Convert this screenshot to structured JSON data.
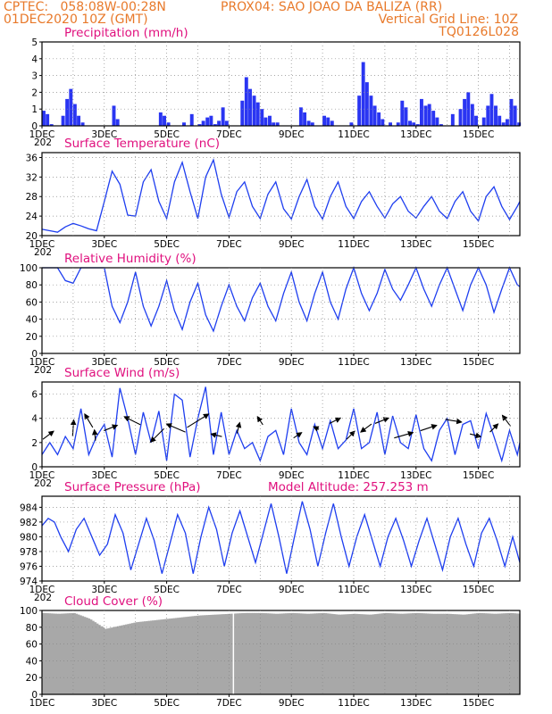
{
  "header": {
    "left_line1": "CPTEC:   058:08W-00:28N",
    "center_line1": "PROX04: SAO JOAO DA BALIZA (RR)",
    "left_line2": "01DEC2020 10Z (GMT)",
    "right_line2": "Vertical Grid Line: 10Z",
    "right_line3": "TQ0126L028"
  },
  "colors": {
    "header": "#e8792a",
    "title": "#e0107e",
    "series": "#1e3ef0",
    "bar": "#2a35f2",
    "cloud": "#a8a8a8",
    "arrow": "#000000",
    "grid": "#888888"
  },
  "x_axis": {
    "labels": [
      "1DEC",
      "3DEC",
      "5DEC",
      "7DEC",
      "9DEC",
      "11DEC",
      "13DEC",
      "15DEC"
    ],
    "sub_label": "202",
    "range_days": [
      0,
      15.33
    ]
  },
  "chart_data": [
    {
      "id": "precip",
      "type": "bar",
      "title": "Precipitation (mm/h)",
      "ylim": [
        0,
        5
      ],
      "yticks": [
        "0",
        "1",
        "2",
        "3",
        "4",
        "5"
      ],
      "x_days": [
        0.0,
        0.12,
        0.25,
        0.37,
        0.5,
        0.62,
        0.75,
        0.87,
        1.0,
        1.12,
        1.25,
        1.37,
        1.5,
        1.62,
        1.75,
        1.87,
        2.0,
        2.12,
        2.25,
        2.37,
        2.5,
        2.62,
        2.75,
        2.87,
        3.0,
        3.12,
        3.25,
        3.37,
        3.5,
        3.62,
        3.75,
        3.87,
        4.0,
        4.12,
        4.25,
        4.37,
        4.5,
        4.62,
        4.75,
        4.87,
        5.0,
        5.12,
        5.25,
        5.37,
        5.5,
        5.62,
        5.75,
        5.87,
        6.0,
        6.12,
        6.25,
        6.37,
        6.5,
        6.62,
        6.75,
        6.87,
        7.0,
        7.12,
        7.25,
        7.37,
        7.5,
        7.62,
        7.75,
        7.87,
        8.0,
        8.12,
        8.25,
        8.37,
        8.5,
        8.62,
        8.75,
        8.87,
        9.0,
        9.12,
        9.25,
        9.37,
        9.5,
        9.62,
        9.75,
        9.87,
        10.0,
        10.12,
        10.25,
        10.37,
        10.5,
        10.62,
        10.75,
        10.87,
        11.0,
        11.12,
        11.25,
        11.37,
        11.5,
        11.62,
        11.75,
        11.87,
        12.0,
        12.12,
        12.25,
        12.37,
        12.5,
        12.62,
        12.75,
        12.87,
        13.0,
        13.12,
        13.25,
        13.37,
        13.5,
        13.62,
        13.75,
        13.87,
        14.0,
        14.12,
        14.25,
        14.37,
        14.5,
        14.62,
        14.75,
        14.87,
        15.0,
        15.12,
        15.25
      ],
      "values": [
        0.9,
        0.7,
        0.1,
        0,
        0,
        0.6,
        1.6,
        2.2,
        1.3,
        0.6,
        0.2,
        0,
        0,
        0,
        0,
        0,
        0,
        0,
        1.2,
        0.4,
        0,
        0,
        0,
        0,
        0,
        0,
        0,
        0,
        0,
        0,
        0.8,
        0.6,
        0.2,
        0,
        0,
        0,
        0.2,
        0,
        0.7,
        0,
        0.1,
        0.3,
        0.5,
        0.6,
        0.1,
        0.3,
        1.1,
        0.3,
        0,
        0,
        0,
        1.5,
        2.9,
        2.2,
        1.8,
        1.4,
        1.0,
        0.5,
        0.6,
        0.2,
        0.2,
        0,
        0,
        0,
        0,
        0,
        1.1,
        0.8,
        0.3,
        0.2,
        0,
        0,
        0.6,
        0.5,
        0.3,
        0,
        0,
        0,
        0,
        0.2,
        0,
        1.8,
        3.8,
        2.6,
        1.8,
        1.2,
        0.8,
        0.4,
        0,
        0.2,
        0,
        0.2,
        1.5,
        1.1,
        0.3,
        0.2,
        0.1,
        1.6,
        1.2,
        1.3,
        0.9,
        0.5,
        0.1,
        0,
        0,
        0.7,
        0,
        1.0,
        1.6,
        2.0,
        1.3,
        0.6,
        0,
        0.5,
        1.2,
        1.9,
        1.2,
        0.6,
        0.2,
        0.4,
        1.6,
        1.2,
        0.2
      ]
    },
    {
      "id": "temp",
      "type": "line",
      "title": "Surface Temperature (nC)",
      "ylim": [
        20,
        37
      ],
      "yticks": [
        "20",
        "24",
        "28",
        "32",
        "36"
      ],
      "x_days": [
        0,
        0.25,
        0.5,
        0.75,
        1.0,
        1.25,
        1.5,
        1.75,
        2.0,
        2.25,
        2.5,
        2.75,
        3.0,
        3.25,
        3.5,
        3.75,
        4.0,
        4.25,
        4.5,
        4.75,
        5.0,
        5.25,
        5.5,
        5.75,
        6.0,
        6.25,
        6.5,
        6.75,
        7.0,
        7.25,
        7.5,
        7.75,
        8.0,
        8.25,
        8.5,
        8.75,
        9.0,
        9.25,
        9.5,
        9.75,
        10.0,
        10.25,
        10.5,
        10.75,
        11.0,
        11.25,
        11.5,
        11.75,
        12.0,
        12.25,
        12.5,
        12.75,
        13.0,
        13.25,
        13.5,
        13.75,
        14.0,
        14.25,
        14.5,
        14.75,
        15.0,
        15.25,
        15.33
      ],
      "values": [
        21.3,
        21.0,
        20.7,
        21.8,
        22.5,
        22.0,
        21.4,
        21.0,
        27.0,
        33.2,
        30.5,
        24.2,
        24.0,
        31.0,
        33.5,
        27.0,
        23.5,
        31.0,
        35.0,
        29.0,
        23.5,
        32.0,
        35.5,
        28.5,
        23.7,
        29.0,
        31.0,
        26.0,
        23.5,
        28.5,
        31.0,
        25.5,
        23.4,
        28.0,
        31.5,
        26.0,
        23.4,
        28.0,
        31.0,
        26.0,
        23.5,
        27.0,
        29.0,
        26.0,
        23.6,
        26.5,
        28.0,
        25.0,
        23.6,
        26.0,
        28.0,
        25.0,
        23.5,
        27.0,
        29.0,
        25.0,
        23.0,
        28.0,
        30.0,
        26.0,
        23.3,
        26.0,
        27.0
      ]
    },
    {
      "id": "rh",
      "type": "line",
      "title": "Relative Humidity (%)",
      "ylim": [
        0,
        100
      ],
      "yticks": [
        "0",
        "20",
        "40",
        "60",
        "80",
        "100"
      ],
      "x_days": [
        0,
        0.25,
        0.5,
        0.75,
        1.0,
        1.25,
        1.5,
        1.75,
        2.0,
        2.25,
        2.5,
        2.75,
        3.0,
        3.25,
        3.5,
        3.75,
        4.0,
        4.25,
        4.5,
        4.75,
        5.0,
        5.25,
        5.5,
        5.75,
        6.0,
        6.25,
        6.5,
        6.75,
        7.0,
        7.25,
        7.5,
        7.75,
        8.0,
        8.25,
        8.5,
        8.75,
        9.0,
        9.25,
        9.5,
        9.75,
        10.0,
        10.25,
        10.5,
        10.75,
        11.0,
        11.25,
        11.5,
        11.75,
        12.0,
        12.25,
        12.5,
        12.75,
        13.0,
        13.25,
        13.5,
        13.75,
        14.0,
        14.25,
        14.5,
        14.75,
        15.0,
        15.25,
        15.33
      ],
      "values": [
        100,
        100,
        100,
        85,
        82,
        100,
        100,
        100,
        100,
        55,
        36,
        60,
        95,
        55,
        32,
        55,
        85,
        50,
        28,
        60,
        82,
        45,
        26,
        55,
        80,
        55,
        38,
        65,
        82,
        55,
        38,
        70,
        95,
        60,
        38,
        70,
        95,
        60,
        40,
        75,
        100,
        70,
        50,
        70,
        98,
        75,
        62,
        80,
        100,
        75,
        55,
        80,
        100,
        75,
        50,
        80,
        100,
        80,
        48,
        75,
        100,
        80,
        78
      ]
    },
    {
      "id": "wind",
      "type": "line",
      "title": "Surface Wind (m/s)",
      "ylim": [
        0,
        7
      ],
      "yticks": [
        "0",
        "2",
        "4",
        "6"
      ],
      "x_days": [
        0,
        0.25,
        0.5,
        0.75,
        1.0,
        1.25,
        1.5,
        1.75,
        2.0,
        2.25,
        2.5,
        2.75,
        3.0,
        3.25,
        3.5,
        3.75,
        4.0,
        4.25,
        4.5,
        4.75,
        5.0,
        5.25,
        5.5,
        5.75,
        6.0,
        6.25,
        6.5,
        6.75,
        7.0,
        7.25,
        7.5,
        7.75,
        8.0,
        8.25,
        8.5,
        8.75,
        9.0,
        9.25,
        9.5,
        9.75,
        10.0,
        10.25,
        10.5,
        10.75,
        11.0,
        11.25,
        11.5,
        11.75,
        12.0,
        12.25,
        12.5,
        12.75,
        13.0,
        13.25,
        13.5,
        13.75,
        14.0,
        14.25,
        14.5,
        14.75,
        15.0,
        15.25,
        15.33
      ],
      "values": [
        1.0,
        2.0,
        1.0,
        2.5,
        1.5,
        4.8,
        1.0,
        2.5,
        3.5,
        0.8,
        6.5,
        4.0,
        1.0,
        4.5,
        2.0,
        4.6,
        0.5,
        6.0,
        5.5,
        0.8,
        4.0,
        6.6,
        1.0,
        4.5,
        1.0,
        3.0,
        1.5,
        2.0,
        0.5,
        2.5,
        3.0,
        1.0,
        4.8,
        2.0,
        1.0,
        3.5,
        1.5,
        3.8,
        1.5,
        2.2,
        4.8,
        1.5,
        2.0,
        4.5,
        1.0,
        4.2,
        2.0,
        1.5,
        4.3,
        1.5,
        0.5,
        3.0,
        4.0,
        1.0,
        3.5,
        3.8,
        1.5,
        4.4,
        2.5,
        0.5,
        3.0,
        1.0,
        2.0
      ],
      "arrows_x_days": [
        0.2,
        1.0,
        1.5,
        1.7,
        2.2,
        2.9,
        3.7,
        4.3,
        5.0,
        5.6,
        6.3,
        7.0,
        8.2,
        8.8,
        9.4,
        9.9,
        10.4,
        10.9,
        11.6,
        12.4,
        13.2,
        13.9,
        14.5,
        14.9
      ],
      "arrows_u": [
        2.0,
        0.2,
        -1.5,
        -0.2,
        2.5,
        -3.0,
        -2.5,
        -3.5,
        4.0,
        -2.0,
        0.5,
        -1.0,
        1.5,
        -1.0,
        2.0,
        1.5,
        -2.0,
        2.5,
        3.5,
        3.0,
        3.0,
        2.0,
        1.5,
        -1.5
      ],
      "arrows_v": [
        1.5,
        3.0,
        2.5,
        2.0,
        1.0,
        1.5,
        -2.5,
        1.5,
        2.5,
        0.5,
        2.0,
        1.5,
        1.0,
        0.5,
        1.0,
        1.5,
        -1.5,
        1.0,
        1.0,
        1.0,
        -0.5,
        -0.5,
        1.5,
        2.0
      ]
    },
    {
      "id": "pres",
      "type": "line",
      "title": "Surface Pressure (hPa)",
      "title_right": "Model Altitude: 257.253 m",
      "ylim": [
        974,
        985.5
      ],
      "yticks": [
        "974",
        "976",
        "978",
        "980",
        "982",
        "984"
      ],
      "x_days": [
        0,
        0.2,
        0.4,
        0.6,
        0.85,
        1.1,
        1.35,
        1.6,
        1.85,
        2.1,
        2.35,
        2.6,
        2.85,
        3.1,
        3.35,
        3.6,
        3.85,
        4.1,
        4.35,
        4.6,
        4.85,
        5.1,
        5.35,
        5.6,
        5.85,
        6.1,
        6.35,
        6.6,
        6.85,
        7.1,
        7.35,
        7.6,
        7.85,
        8.1,
        8.35,
        8.6,
        8.85,
        9.1,
        9.35,
        9.6,
        9.85,
        10.1,
        10.35,
        10.6,
        10.85,
        11.1,
        11.35,
        11.6,
        11.85,
        12.1,
        12.35,
        12.6,
        12.85,
        13.1,
        13.35,
        13.6,
        13.85,
        14.1,
        14.35,
        14.6,
        14.85,
        15.1,
        15.33
      ],
      "values": [
        981.5,
        982.5,
        982.0,
        980.0,
        978.0,
        981.0,
        982.5,
        980.0,
        977.5,
        979.0,
        983.0,
        980.5,
        975.5,
        979.0,
        982.5,
        979.5,
        975.0,
        979.0,
        983.0,
        980.5,
        975.0,
        980.0,
        984.0,
        981.0,
        976.0,
        980.5,
        983.5,
        980.0,
        976.5,
        980.5,
        984.5,
        980.0,
        975.0,
        980.0,
        984.8,
        981.0,
        976.0,
        980.5,
        984.5,
        980.0,
        976.0,
        980.0,
        983.0,
        979.5,
        976.0,
        980.0,
        982.5,
        979.5,
        976.0,
        979.5,
        982.5,
        979.0,
        975.5,
        980.0,
        982.5,
        979.0,
        976.0,
        980.5,
        982.5,
        979.5,
        976.0,
        980.0,
        976.5
      ]
    },
    {
      "id": "cloud",
      "type": "area",
      "title": "Cloud Cover (%)",
      "ylim": [
        0,
        100
      ],
      "yticks": [
        "0",
        "20",
        "40",
        "60",
        "80",
        "100"
      ],
      "x_days": [
        0,
        0.5,
        1.0,
        1.5,
        2.0,
        2.5,
        3.0,
        3.5,
        4.0,
        4.5,
        5.0,
        5.5,
        6.0,
        6.5,
        7.0,
        7.5,
        8.0,
        8.5,
        9.0,
        9.5,
        10.0,
        10.5,
        11.0,
        11.5,
        12.0,
        12.5,
        13.0,
        13.5,
        14.0,
        14.5,
        15.0,
        15.33
      ],
      "values": [
        97,
        96,
        97,
        90,
        78,
        82,
        86,
        88,
        90,
        92,
        94,
        95,
        96,
        97,
        97,
        96,
        97,
        96,
        97,
        95,
        96,
        95,
        97,
        96,
        97,
        96,
        96,
        95,
        97,
        96,
        97,
        96
      ]
    }
  ]
}
